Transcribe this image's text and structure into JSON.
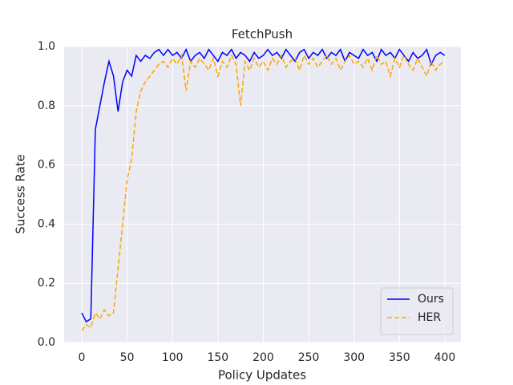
{
  "chart_data": {
    "type": "line",
    "title": "FetchPush",
    "xlabel": "Policy Updates",
    "ylabel": "Success Rate",
    "x": [
      0,
      5,
      10,
      15,
      20,
      25,
      30,
      35,
      40,
      45,
      50,
      55,
      60,
      65,
      70,
      75,
      80,
      85,
      90,
      95,
      100,
      105,
      110,
      115,
      120,
      125,
      130,
      135,
      140,
      145,
      150,
      155,
      160,
      165,
      170,
      175,
      180,
      185,
      190,
      195,
      200,
      205,
      210,
      215,
      220,
      225,
      230,
      235,
      240,
      245,
      250,
      255,
      260,
      265,
      270,
      275,
      280,
      285,
      290,
      295,
      300,
      305,
      310,
      315,
      320,
      325,
      330,
      335,
      340,
      345,
      350,
      355,
      360,
      365,
      370,
      375,
      380,
      385,
      390,
      395,
      400
    ],
    "series": [
      {
        "name": "Ours",
        "color": "#0000ff",
        "linestyle": "solid",
        "values": [
          0.1,
          0.07,
          0.08,
          0.72,
          0.8,
          0.88,
          0.95,
          0.9,
          0.78,
          0.88,
          0.92,
          0.9,
          0.97,
          0.95,
          0.97,
          0.96,
          0.98,
          0.99,
          0.97,
          0.99,
          0.97,
          0.98,
          0.96,
          0.99,
          0.95,
          0.97,
          0.98,
          0.96,
          0.99,
          0.97,
          0.95,
          0.98,
          0.97,
          0.99,
          0.96,
          0.98,
          0.97,
          0.95,
          0.98,
          0.96,
          0.97,
          0.99,
          0.97,
          0.98,
          0.96,
          0.99,
          0.97,
          0.95,
          0.98,
          0.99,
          0.96,
          0.98,
          0.97,
          0.99,
          0.96,
          0.98,
          0.97,
          0.99,
          0.95,
          0.98,
          0.97,
          0.96,
          0.99,
          0.97,
          0.98,
          0.95,
          0.99,
          0.97,
          0.98,
          0.96,
          0.99,
          0.97,
          0.95,
          0.98,
          0.96,
          0.97,
          0.99,
          0.94,
          0.97,
          0.98,
          0.97
        ]
      },
      {
        "name": "HER",
        "color": "#ffa500",
        "linestyle": "dashed",
        "values": [
          0.04,
          0.06,
          0.05,
          0.1,
          0.08,
          0.11,
          0.09,
          0.1,
          0.25,
          0.4,
          0.55,
          0.62,
          0.78,
          0.85,
          0.88,
          0.9,
          0.92,
          0.94,
          0.95,
          0.93,
          0.96,
          0.94,
          0.97,
          0.85,
          0.95,
          0.93,
          0.96,
          0.94,
          0.92,
          0.96,
          0.9,
          0.95,
          0.93,
          0.97,
          0.94,
          0.8,
          0.95,
          0.92,
          0.96,
          0.93,
          0.95,
          0.92,
          0.96,
          0.94,
          0.97,
          0.93,
          0.95,
          0.96,
          0.92,
          0.97,
          0.94,
          0.96,
          0.93,
          0.95,
          0.97,
          0.94,
          0.96,
          0.92,
          0.95,
          0.97,
          0.94,
          0.95,
          0.93,
          0.96,
          0.92,
          0.97,
          0.94,
          0.95,
          0.9,
          0.96,
          0.93,
          0.97,
          0.94,
          0.92,
          0.96,
          0.93,
          0.9,
          0.95,
          0.92,
          0.94,
          0.95
        ]
      }
    ],
    "xlim": [
      -19.4,
      417.7
    ],
    "xticks": [
      0,
      50,
      100,
      150,
      200,
      250,
      300,
      350,
      400
    ],
    "ylim": [
      0,
      1
    ],
    "yticks": [
      {
        "value": 0,
        "label": "0.0"
      },
      0.2,
      0.4,
      0.6,
      0.8,
      {
        "value": 1,
        "label": "1.0"
      }
    ],
    "grid": true,
    "legend": "lower right"
  }
}
